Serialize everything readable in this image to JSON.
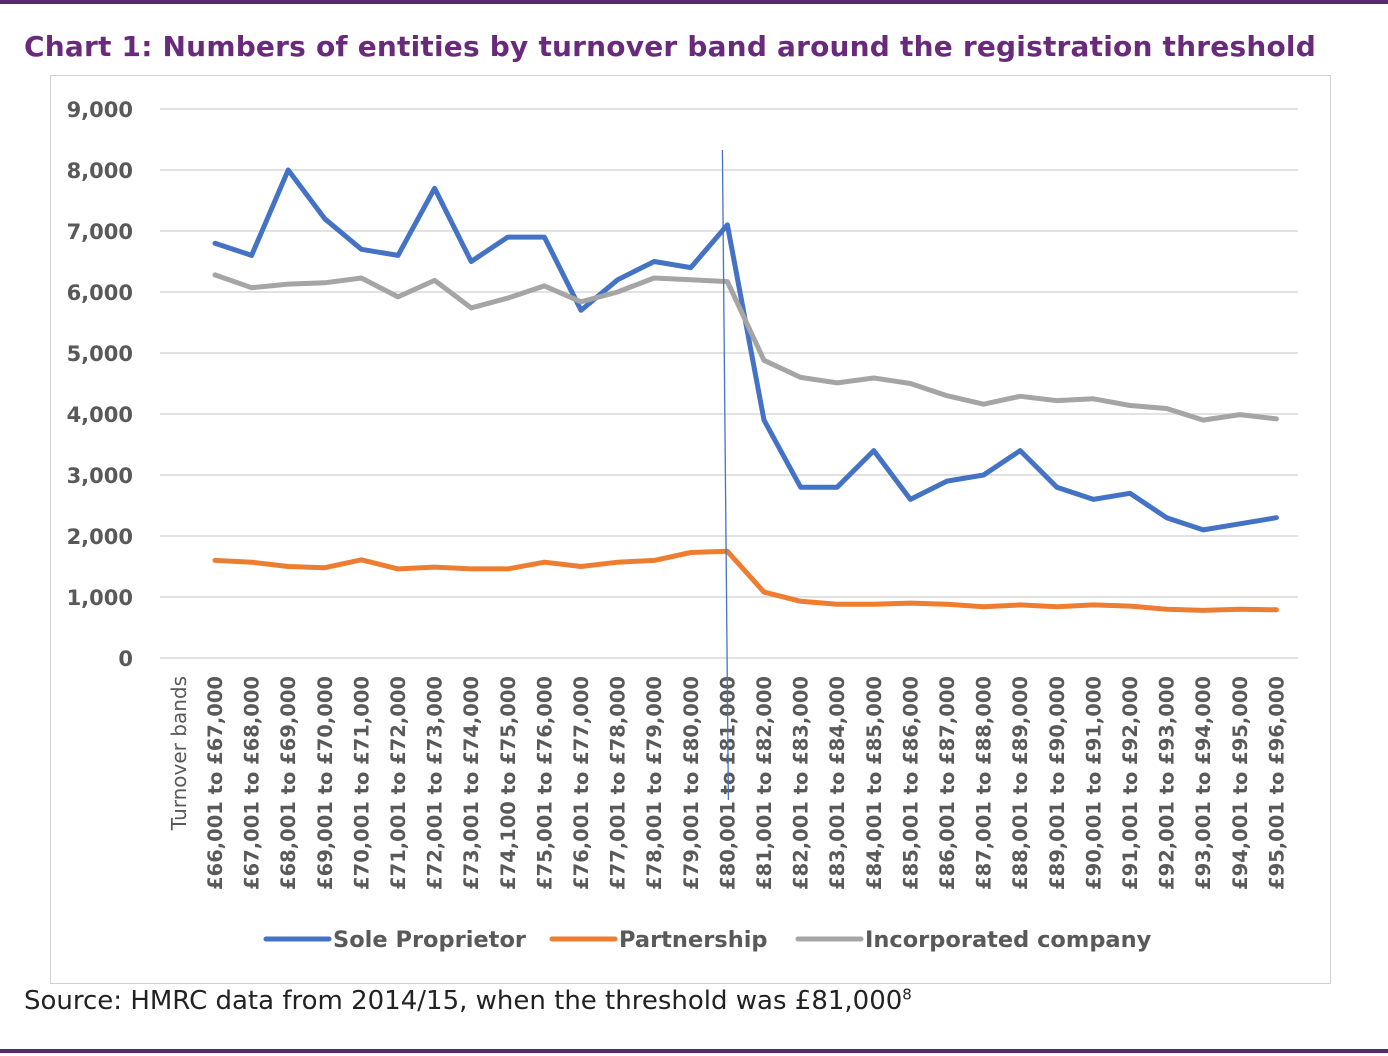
{
  "title": "Chart 1: Numbers of entities by turnover band around the registration threshold",
  "source": {
    "text": "Source: HMRC data from 2014/15, when the threshold was £81,000",
    "footnote": "8"
  },
  "colors": {
    "sole": "#4472c4",
    "partnership": "#ed7d31",
    "incorporated": "#a5a5a5",
    "threshold_line": "#4472c4",
    "grid": "#d9d9d9",
    "text": "#595959"
  },
  "chart_data": {
    "type": "line",
    "title": "Chart 1: Numbers of entities by turnover band around the registration threshold",
    "xlabel": "Turnover bands",
    "ylabel": "",
    "ylim": [
      0,
      9000
    ],
    "yticks": [
      0,
      1000,
      2000,
      3000,
      4000,
      5000,
      6000,
      7000,
      8000,
      9000
    ],
    "ytick_labels": [
      "0",
      "1,000",
      "2,000",
      "3,000",
      "4,000",
      "5,000",
      "6,000",
      "7,000",
      "8,000",
      "9,000"
    ],
    "grid": true,
    "legend_position": "bottom",
    "threshold_category": "£80,001 to £81,000",
    "categories": [
      "£66,001 to £67,000",
      "£67,001 to £68,000",
      "£68,001 to £69,000",
      "£69,001 to £70,000",
      "£70,001 to £71,000",
      "£71,001 to £72,000",
      "£72,001 to £73,000",
      "£73,001 to £74,000",
      "£74,100 to £75,000",
      "£75,001 to £76,000",
      "£76,001 to £77,000",
      "£77,001 to £78,000",
      "£78,001 to £79,000",
      "£79,001 to £80,000",
      "£80,001 to £81,000",
      "£81,001 to £82,000",
      "£82,001 to £83,000",
      "£83,001 to £84,000",
      "£84,001 to £85,000",
      "£85,001 to £86,000",
      "£86,001 to £87,000",
      "£87,001 to £88,000",
      "£88,001 to £89,000",
      "£89,001 to £90,000",
      "£90,001 to £91,000",
      "£91,001 to £92,000",
      "£92,001 to £93,000",
      "£93,001 to £94,000",
      "£94,001 to £95,000",
      "£95,001 to £96,000"
    ],
    "series": [
      {
        "name": "Sole Proprietor",
        "key": "sole",
        "values": [
          6800,
          6600,
          8000,
          7200,
          6700,
          6600,
          7700,
          6500,
          6900,
          6900,
          5700,
          6200,
          6500,
          6400,
          7100,
          3900,
          2800,
          2800,
          3400,
          2600,
          2900,
          3000,
          3400,
          2800,
          2600,
          2700,
          2300,
          2100,
          2200,
          2300
        ]
      },
      {
        "name": "Partnership",
        "key": "partnership",
        "values": [
          1600,
          1570,
          1500,
          1480,
          1610,
          1460,
          1490,
          1460,
          1460,
          1570,
          1500,
          1570,
          1600,
          1730,
          1750,
          1080,
          930,
          880,
          880,
          900,
          880,
          840,
          870,
          840,
          870,
          850,
          800,
          780,
          800,
          790
        ]
      },
      {
        "name": "Incorporated company",
        "key": "incorporated",
        "values": [
          6280,
          6070,
          6130,
          6150,
          6230,
          5920,
          6190,
          5740,
          5900,
          6100,
          5840,
          6000,
          6230,
          6200,
          6170,
          4880,
          4600,
          4510,
          4590,
          4500,
          4300,
          4160,
          4290,
          4220,
          4250,
          4140,
          4090,
          3900,
          3990,
          3920
        ]
      }
    ]
  }
}
